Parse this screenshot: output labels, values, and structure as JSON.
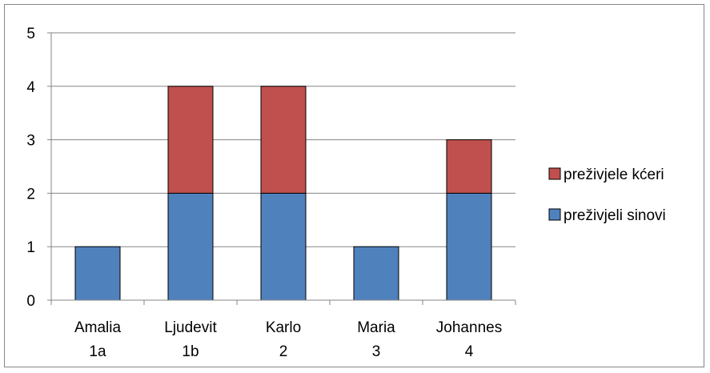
{
  "chart_data": {
    "type": "bar",
    "stacked": true,
    "categories": [
      [
        "Amalia",
        "1a"
      ],
      [
        "Ljudevit",
        "1b"
      ],
      [
        "Karlo",
        "2"
      ],
      [
        "Maria",
        "3"
      ],
      [
        "Johannes",
        "4"
      ]
    ],
    "series": [
      {
        "name": "preživjeli sinovi",
        "values": [
          1,
          2,
          2,
          1,
          2
        ],
        "color": "#4F81BD"
      },
      {
        "name": "preživjele kćeri",
        "values": [
          0,
          2,
          2,
          0,
          1
        ],
        "color": "#C0504D"
      }
    ],
    "ylim": [
      0,
      5
    ],
    "yticks": [
      "0",
      "1",
      "2",
      "3",
      "4",
      "5"
    ],
    "grid": true,
    "legend_position": "right",
    "title": "",
    "xlabel": "",
    "ylabel": ""
  }
}
